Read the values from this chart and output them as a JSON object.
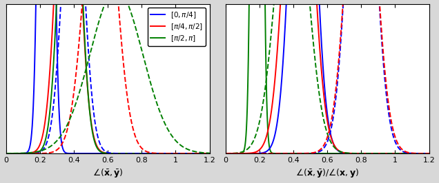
{
  "legend_labels": [
    "$[0, \\pi/4]$",
    "$[\\pi/4, \\pi/2]$",
    "$[\\pi/2, \\pi]$"
  ],
  "xlabel_left": "$\\angle(\\bar{\\mathbf{x}}, \\bar{\\mathbf{y}})$",
  "xlabel_right": "$\\angle(\\bar{\\mathbf{x}}, \\bar{\\mathbf{y}}) / \\angle(\\mathbf{x}, \\mathbf{y})$",
  "xlim": [
    0,
    1.2
  ],
  "background": "#d8d8d8",
  "plot_bg": "#ffffff",
  "left_solid_blue": {
    "mu": 0.235,
    "sigma": 0.03,
    "peak": 7.5
  },
  "left_solid_red": {
    "mu": 0.365,
    "sigma": 0.06,
    "peak": 2.75
  },
  "left_solid_green": {
    "mu": 0.375,
    "sigma": 0.055,
    "peak": 2.75
  },
  "left_dashed_blue": {
    "mu": 0.395,
    "sigma": 0.06,
    "peak": 2.1
  },
  "left_dashed_red": {
    "mu": 0.555,
    "sigma": 0.085,
    "peak": 2.2
  },
  "left_dashed_green": {
    "mu": 0.65,
    "sigma": 0.155,
    "peak": 1.1
  },
  "right_solid_green": {
    "mu": 0.185,
    "sigma": 0.022,
    "peak": 10.0
  },
  "right_solid_blue": {
    "mu": 0.455,
    "sigma": 0.065,
    "peak": 3.1
  },
  "right_solid_red": {
    "mu": 0.43,
    "sigma": 0.075,
    "peak": 2.8
  },
  "right_dashed_green": {
    "mu": 0.39,
    "sigma": 0.09,
    "peak": 2.0
  },
  "right_dashed_blue": {
    "mu": 0.8,
    "sigma": 0.075,
    "peak": 2.75
  },
  "right_dashed_red": {
    "mu": 0.8,
    "sigma": 0.08,
    "peak": 2.5
  }
}
